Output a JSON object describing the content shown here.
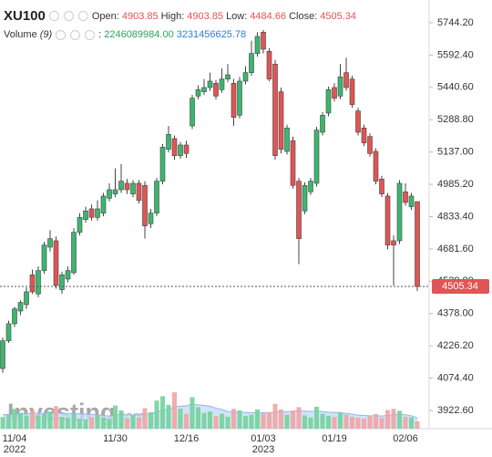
{
  "chart_data": {
    "type": "candlestick",
    "title": "XU100",
    "header": {
      "open_label": "Open:",
      "high_label": "High:",
      "low_label": "Low:",
      "close_label": "Close:"
    },
    "volume_header": {
      "label": "Volume",
      "period": "(9)",
      "separator": ":",
      "last": {
        "value": 2246089984,
        "label": "2246089984.00"
      },
      "ma_last": 3231456625.78
    },
    "watermark": {
      "name": "Investing",
      "suffix": ".com"
    },
    "categories": [
      null,
      null,
      "11/04",
      null,
      null,
      null,
      null,
      null,
      null,
      null,
      null,
      null,
      null,
      null,
      null,
      null,
      null,
      null,
      null,
      "11/30",
      null,
      null,
      null,
      null,
      null,
      null,
      null,
      null,
      null,
      null,
      null,
      "12/16",
      null,
      null,
      null,
      null,
      null,
      null,
      null,
      null,
      null,
      null,
      null,
      null,
      "01/03",
      null,
      null,
      null,
      null,
      null,
      null,
      null,
      null,
      null,
      null,
      null,
      "01/19",
      null,
      null,
      null,
      null,
      null,
      null,
      null,
      null,
      null,
      null,
      null,
      "02/06",
      null,
      null
    ],
    "year_labels": [
      {
        "category": "11/04",
        "label": "2022"
      },
      {
        "category": "01/03",
        "label": "2023"
      }
    ],
    "up_color": "#3cb66e",
    "down_color": "#e05555",
    "open": [
      4120,
      4250,
      4330,
      4390,
      4420,
      4560,
      4470,
      4580,
      4690,
      4720,
      4490,
      4540,
      4570,
      4760,
      4820,
      4870,
      4830,
      4850,
      4920,
      4940,
      4960,
      4990,
      4940,
      4990,
      4980,
      4800,
      4850,
      5000,
      5150,
      5200,
      5120,
      5170,
      5260,
      5400,
      5420,
      5440,
      5460,
      5430,
      5480,
      5460,
      5310,
      5470,
      5510,
      5600,
      5700,
      5610,
      5550,
      5420,
      5140,
      5190,
      5000,
      4860,
      4950,
      4990,
      5230,
      5320,
      5440,
      5400,
      5510,
      5480,
      5330,
      5250,
      5210,
      5140,
      5010,
      4930,
      4720,
      4720,
      4950,
      4880,
      4903.85
    ],
    "high": [
      4265,
      4345,
      4410,
      4440,
      4500,
      4585,
      4600,
      4715,
      4770,
      4740,
      4575,
      4600,
      4780,
      4850,
      4880,
      4890,
      4910,
      4945,
      4990,
      5060,
      5080,
      5010,
      5005,
      5005,
      5000,
      4870,
      5015,
      5175,
      5260,
      5215,
      5185,
      5190,
      5405,
      5450,
      5480,
      5510,
      5475,
      5530,
      5550,
      5480,
      5490,
      5540,
      5660,
      5700,
      5710,
      5625,
      5570,
      5440,
      5265,
      5210,
      5015,
      4995,
      5015,
      5255,
      5325,
      5445,
      5460,
      5550,
      5580,
      5495,
      5345,
      5265,
      5225,
      5155,
      5025,
      4945,
      4745,
      5005,
      4990,
      4945,
      4903.85
    ],
    "low": [
      4100,
      4240,
      4315,
      4370,
      4400,
      4470,
      4455,
      4565,
      4670,
      4495,
      4470,
      4525,
      4560,
      4745,
      4805,
      4815,
      4815,
      4835,
      4905,
      4925,
      4945,
      4940,
      4925,
      4895,
      4730,
      4780,
      4835,
      4985,
      5135,
      5100,
      5105,
      5110,
      5245,
      5385,
      5405,
      5425,
      5385,
      5415,
      5465,
      5260,
      5295,
      5455,
      5495,
      5585,
      5600,
      5470,
      5100,
      5130,
      5125,
      4965,
      4610,
      4845,
      4935,
      4975,
      5215,
      5305,
      5375,
      5385,
      5425,
      5345,
      5215,
      5165,
      5115,
      4985,
      4925,
      4680,
      4510,
      4705,
      4885,
      4865,
      4484.66
    ],
    "close": [
      4250,
      4330,
      4400,
      4430,
      4480,
      4480,
      4580,
      4700,
      4730,
      4510,
      4560,
      4580,
      4760,
      4830,
      4860,
      4830,
      4870,
      4930,
      4960,
      4960,
      5000,
      4960,
      4990,
      4910,
      4790,
      4850,
      5000,
      5160,
      5220,
      5120,
      5170,
      5130,
      5390,
      5430,
      5440,
      5470,
      5400,
      5480,
      5500,
      5300,
      5470,
      5510,
      5600,
      5680,
      5620,
      5480,
      5120,
      5150,
      5250,
      4980,
      4730,
      4980,
      5000,
      5240,
      5310,
      5430,
      5390,
      5490,
      5440,
      5360,
      5230,
      5180,
      5130,
      5000,
      4940,
      4700,
      4700,
      4990,
      4900,
      4930,
      4505.34
    ],
    "volume": [
      3500000000.0,
      4200000000.0,
      6000000000.0,
      4800000000.0,
      3900000000.0,
      5500000000.0,
      4000000000.0,
      4400000000.0,
      5200000000.0,
      6800000000.0,
      3600000000.0,
      3200000000.0,
      4600000000.0,
      3000000000.0,
      2800000000.0,
      3500000000.0,
      4100000000.0,
      3300000000.0,
      2900000000.0,
      7000000000.0,
      5500000000.0,
      3100000000.0,
      4000000000.0,
      3400000000.0,
      6200000000.0,
      5000000000.0,
      8500000000.0,
      9800000000.0,
      7200000000.0,
      11000000000.0,
      6000000000.0,
      4500000000.0,
      9500000000.0,
      6500000000.0,
      4800000000.0,
      5200000000.0,
      3800000000.0,
      4500000000.0,
      3600000000.0,
      6000000000.0,
      5500000000.0,
      3800000000.0,
      4200000000.0,
      5800000000.0,
      4600000000.0,
      5000000000.0,
      7500000000.0,
      5800000000.0,
      4200000000.0,
      5500000000.0,
      6500000000.0,
      4000000000.0,
      3400000000.0,
      6600000000.0,
      4500000000.0,
      3900000000.0,
      3500000000.0,
      5000000000.0,
      4200000000.0,
      3600000000.0,
      3300000000.0,
      3000000000.0,
      3800000000.0,
      4400000000.0,
      3200000000.0,
      5600000000.0,
      6000000000.0,
      5400000000.0,
      3600000000.0,
      3400000000.0,
      2246089984
    ],
    "volume_ma": [
      4200000000.0,
      4300000000.0,
      4400000000.0,
      4500000000.0,
      4500000000.0,
      4600000000.0,
      4600000000.0,
      4600000000.0,
      4700000000.0,
      4800000000.0,
      4700000000.0,
      4600000000.0,
      4600000000.0,
      4500000000.0,
      4400000000.0,
      4300000000.0,
      4200000000.0,
      4000000000.0,
      3800000000.0,
      4200000000.0,
      4300000000.0,
      4200000000.0,
      4100000000.0,
      4100000000.0,
      4400000000.0,
      4500000000.0,
      5000000000.0,
      5600000000.0,
      5900000000.0,
      6600000000.0,
      6800000000.0,
      6900000000.0,
      7400000000.0,
      7200000000.0,
      7000000000.0,
      6800000000.0,
      6200000000.0,
      5800000000.0,
      5200000000.0,
      5000000000.0,
      5000000000.0,
      4900000000.0,
      4800000000.0,
      4800000000.0,
      4800000000.0,
      4800000000.0,
      5000000000.0,
      5200000000.0,
      5100000000.0,
      5200000000.0,
      5400000000.0,
      5300000000.0,
      5200000000.0,
      5300000000.0,
      5200000000.0,
      5000000000.0,
      4900000000.0,
      4800000000.0,
      4600000000.0,
      4400000000.0,
      4100000000.0,
      4000000000.0,
      3900000000.0,
      3900000000.0,
      3800000000.0,
      4000000000.0,
      4200000000.0,
      4300000000.0,
      4200000000.0,
      3900000000.0,
      3231456625.78
    ],
    "ylim": [
      3836.9,
      5851.3
    ],
    "yticks": [
      {
        "value": 3922.6,
        "label": "3922.60"
      },
      {
        "value": 4074.4,
        "label": "4074.40"
      },
      {
        "value": 4226.2,
        "label": "4226.20"
      },
      {
        "value": 4378,
        "label": "4378.00"
      },
      {
        "value": 4529.8,
        "label": "4529.80"
      },
      {
        "value": 4681.6,
        "label": "4681.60"
      },
      {
        "value": 4833.4,
        "label": "4833.40"
      },
      {
        "value": 4985.2,
        "label": "4985.20"
      },
      {
        "value": 5137,
        "label": "5137.00"
      },
      {
        "value": 5288.8,
        "label": "5288.80"
      },
      {
        "value": 5440.6,
        "label": "5440.60"
      },
      {
        "value": 5592.4,
        "label": "5592.40"
      },
      {
        "value": 5744.2,
        "label": "5744.20"
      }
    ],
    "grid": false
  }
}
